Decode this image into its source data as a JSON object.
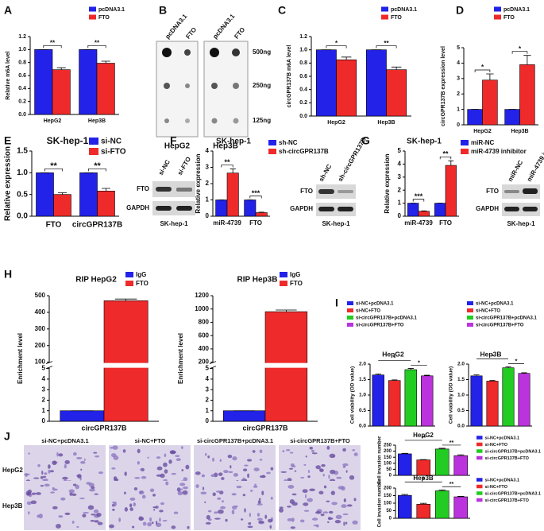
{
  "chart_data": [
    {
      "type": "bar",
      "panel": "A",
      "ylabel": "Relative m6A level",
      "categories": [
        "HepG2",
        "Hep3B"
      ],
      "series": [
        {
          "name": "pcDNA3.1",
          "color": "#2222e8",
          "values": [
            1.0,
            1.0
          ],
          "errors": [
            0,
            0
          ]
        },
        {
          "name": "FTO",
          "color": "#ee2a2a",
          "values": [
            0.69,
            0.79
          ],
          "errors": [
            0.03,
            0.03
          ]
        }
      ],
      "ylim": [
        0,
        1.2
      ],
      "yticks": [
        {
          "value": 0,
          "label": "0.0"
        },
        0.2,
        0.4,
        0.6,
        0.8,
        {
          "value": 1,
          "label": "1.0"
        },
        1.2
      ],
      "annotations": [
        "**",
        "**"
      ]
    },
    {
      "type": "bar",
      "panel": "C",
      "ylabel": "circGPR137B m6A level",
      "categories": [
        "HepG2",
        "Hep3B"
      ],
      "series": [
        {
          "name": "pcDNA3.1",
          "color": "#2222e8",
          "values": [
            1.0,
            1.0
          ],
          "errors": [
            0,
            0
          ]
        },
        {
          "name": "FTO",
          "color": "#ee2a2a",
          "values": [
            0.85,
            0.7
          ],
          "errors": [
            0.04,
            0.04
          ]
        }
      ],
      "ylim": [
        0,
        1.2
      ],
      "yticks": [
        {
          "value": 0,
          "label": "0.0"
        },
        0.2,
        0.4,
        0.6,
        0.8,
        {
          "value": 1,
          "label": "1.0"
        },
        1.2
      ],
      "annotations": [
        "*",
        "**"
      ]
    },
    {
      "type": "bar",
      "panel": "D",
      "ylabel": "circGPR137B expression level",
      "categories": [
        "HepG2",
        "Hep3B"
      ],
      "series": [
        {
          "name": "pcDNA3.1",
          "color": "#2222e8",
          "values": [
            1,
            1
          ],
          "errors": [
            0,
            0
          ]
        },
        {
          "name": "FTO",
          "color": "#ee2a2a",
          "values": [
            2.9,
            3.9
          ],
          "errors": [
            0.4,
            0.6
          ]
        }
      ],
      "ylim": [
        0,
        5
      ],
      "yticks": [
        0,
        1,
        2,
        3,
        4,
        5
      ],
      "annotations": [
        "*",
        "*"
      ]
    },
    {
      "type": "bar",
      "panel": "E",
      "title": "SK-hep-1",
      "ylabel": "Relative expression",
      "categories": [
        "FTO",
        "circGPR137B"
      ],
      "series": [
        {
          "name": "si-NC",
          "color": "#2222e8",
          "values": [
            1,
            1
          ],
          "errors": [
            0,
            0
          ]
        },
        {
          "name": "si-FTO",
          "color": "#ee2a2a",
          "values": [
            0.5,
            0.58
          ],
          "errors": [
            0.04,
            0.06
          ]
        }
      ],
      "ylim": [
        0,
        1.5
      ],
      "yticks": [
        {
          "value": 0,
          "label": "0.0"
        },
        0.5,
        {
          "value": 1,
          "label": "1.0"
        },
        1.5
      ],
      "annotations": [
        "**",
        "**"
      ]
    },
    {
      "type": "bar",
      "panel": "F",
      "title": "SK-hep-1",
      "ylabel": "Relative expression",
      "categories": [
        "miR-4739",
        "FTO"
      ],
      "series": [
        {
          "name": "sh-NC",
          "color": "#2222e8",
          "values": [
            1,
            1
          ],
          "errors": [
            0,
            0
          ]
        },
        {
          "name": "sh-circGPR137B",
          "color": "#ee2a2a",
          "values": [
            2.65,
            0.22
          ],
          "errors": [
            0.25,
            0.03
          ]
        }
      ],
      "ylim": [
        0,
        4
      ],
      "yticks": [
        0,
        1,
        2,
        3,
        4
      ],
      "annotations": [
        "**",
        "***"
      ]
    },
    {
      "type": "bar",
      "panel": "G",
      "title": "SK-hep-1",
      "ylabel": "Relative expression",
      "categories": [
        "miR-4739",
        "FTO"
      ],
      "series": [
        {
          "name": "miR-NC",
          "color": "#2222e8",
          "values": [
            1,
            1
          ],
          "errors": [
            0,
            0
          ]
        },
        {
          "name": "miR-4739 inhibitor",
          "color": "#ee2a2a",
          "values": [
            0.38,
            3.9
          ],
          "errors": [
            0.03,
            0.35
          ]
        }
      ],
      "ylim": [
        0,
        5
      ],
      "yticks": [
        0,
        1,
        2,
        3,
        4,
        5
      ],
      "annotations": [
        "***",
        "**"
      ]
    },
    {
      "type": "bar",
      "panel": "H",
      "title": "RIP HepG2",
      "ylabel": "Enrichment level",
      "categories": [
        "circGPR137B"
      ],
      "series": [
        {
          "name": "IgG",
          "color": "#2222e8",
          "values": [
            1
          ],
          "errors": [
            0
          ]
        },
        {
          "name": "FTO",
          "color": "#ee2a2a",
          "values": [
            470
          ],
          "errors": [
            10
          ]
        }
      ],
      "ylim": [
        0,
        500
      ],
      "ybreak": [
        5,
        100
      ],
      "yticks": [
        0,
        1,
        2,
        3,
        4,
        5,
        100,
        200,
        300,
        400,
        500
      ]
    },
    {
      "type": "bar",
      "title": "RIP Hep3B",
      "ylabel": "Enrichment level",
      "categories": [
        "circGPR137B"
      ],
      "series": [
        {
          "name": "IgG",
          "color": "#2222e8",
          "values": [
            1
          ],
          "errors": [
            0
          ]
        },
        {
          "name": "FTO",
          "color": "#ee2a2a",
          "values": [
            960
          ],
          "errors": [
            25
          ]
        }
      ],
      "ylim": [
        0,
        1200
      ],
      "ybreak": [
        5,
        200
      ],
      "yticks": [
        0,
        1,
        2,
        3,
        4,
        5,
        200,
        400,
        600,
        800,
        1000,
        1200
      ]
    },
    {
      "type": "bar",
      "panel": "I",
      "title": "HepG2",
      "ylabel": "Cell viability (OD value)",
      "categories": [
        "si-NC+pcDNA3.1",
        "si-NC+FTO",
        "si-circGPR137B+pcDNA3.1",
        "si-circGPR137B+FTO"
      ],
      "colors": [
        "#2222e8",
        "#ee2a2a",
        "#22cc22",
        "#bb33dd"
      ],
      "values": [
        1.65,
        1.47,
        1.82,
        1.62
      ],
      "errors": [
        0.03,
        0.02,
        0.04,
        0.02
      ],
      "ylim": [
        0,
        2
      ],
      "yticks": [
        {
          "value": 0,
          "label": "0.0"
        },
        0.5,
        {
          "value": 1,
          "label": "1.0"
        },
        1.5,
        {
          "value": 2,
          "label": "2.0"
        }
      ],
      "annotations": [
        "*",
        "*"
      ]
    },
    {
      "type": "bar",
      "title": "Hep3B",
      "ylabel": "Cell viability (OD value)",
      "categories": [
        "si-NC+pcDNA3.1",
        "si-NC+FTO",
        "si-circGPR137B+pcDNA3.1",
        "si-circGPR137B+FTO"
      ],
      "colors": [
        "#2222e8",
        "#ee2a2a",
        "#22cc22",
        "#bb33dd"
      ],
      "values": [
        1.62,
        1.45,
        1.88,
        1.7
      ],
      "errors": [
        0.03,
        0.02,
        0.03,
        0.02
      ],
      "ylim": [
        0,
        2
      ],
      "yticks": [
        {
          "value": 0,
          "label": "0.0"
        },
        0.5,
        {
          "value": 1,
          "label": "1.0"
        },
        1.5,
        {
          "value": 2,
          "label": "2.0"
        }
      ],
      "annotations": [
        "*",
        "*"
      ]
    },
    {
      "type": "bar",
      "title": "HepG2",
      "ylabel": "Cell invasion number",
      "categories": [
        "si-NC+pcDNA3.1",
        "si-NC+FTO",
        "si-circGPR137B+pcDNA3.1",
        "si-circGPR137B+FTO"
      ],
      "colors": [
        "#2222e8",
        "#ee2a2a",
        "#22cc22",
        "#bb33dd"
      ],
      "values": [
        178,
        128,
        218,
        163
      ],
      "errors": [
        4,
        3,
        6,
        7
      ],
      "ylim": [
        0,
        250
      ],
      "yticks": [
        0,
        50,
        100,
        150,
        200,
        250
      ],
      "annotations": [
        "**",
        "**"
      ]
    },
    {
      "type": "bar",
      "title": "Hep3B",
      "ylabel": "Cell invasion number",
      "categories": [
        "si-NC+pcDNA3.1",
        "si-NC+FTO",
        "si-circGPR137B+pcDNA3.1",
        "si-circGPR137B+FTO"
      ],
      "colors": [
        "#2222e8",
        "#ee2a2a",
        "#22cc22",
        "#bb33dd"
      ],
      "values": [
        152,
        93,
        182,
        142
      ],
      "errors": [
        6,
        6,
        6,
        3
      ],
      "ylim": [
        0,
        200
      ],
      "yticks": [
        0,
        50,
        100,
        150,
        200
      ],
      "annotations": [
        "*",
        "**"
      ]
    }
  ],
  "figure": {
    "B": {
      "panel": "B",
      "lanes": [
        "pcDNA3.1",
        "FTO",
        "pcDNA3.1",
        "FTO"
      ],
      "amounts": [
        "500ng",
        "250ng",
        "125ng"
      ],
      "cells": [
        "HepG2",
        "Hep3B"
      ]
    },
    "E_blot": {
      "lanes": [
        "si-NC",
        "si-FTO"
      ],
      "proteins": [
        "FTO",
        "GAPDH"
      ],
      "cell": "SK-hep-1"
    },
    "F_blot": {
      "lanes": [
        "sh-NC",
        "sh-circGPR137B"
      ],
      "proteins": [
        "FTO",
        "GAPDH"
      ],
      "cell": "SK-hep-1"
    },
    "G_blot": {
      "lanes": [
        "miR-NC",
        "miR-4739 inhibitor"
      ],
      "proteins": [
        "FTO",
        "GAPDH"
      ],
      "cell": "SK-hep-1"
    },
    "J": {
      "panel": "J",
      "conditions": [
        "si-NC+pcDNA3.1",
        "si-NC+FTO",
        "si-circGPR137B+pcDNA3.1",
        "si-circGPR137B+FTO"
      ],
      "cells": [
        "HepG2",
        "Hep3B"
      ]
    }
  }
}
